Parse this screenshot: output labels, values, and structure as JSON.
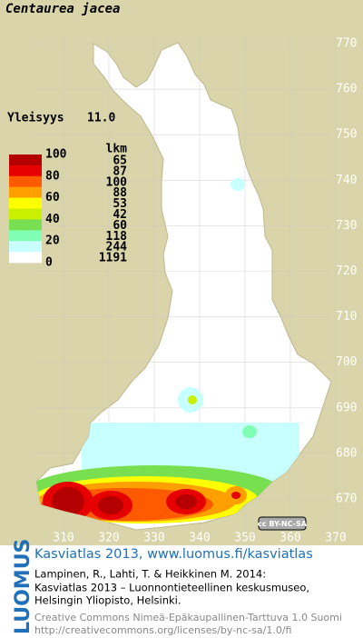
{
  "map": {
    "title": "Centaurea jacea",
    "frequency_label": "Yleisyys",
    "frequency_value": "11.0",
    "xticks": [
      310,
      320,
      330,
      340,
      350,
      360,
      370
    ],
    "yticks": [
      670,
      680,
      690,
      700,
      710,
      720,
      730,
      740,
      750,
      760,
      770
    ],
    "license_badge": "cc BY-NC-SA"
  },
  "legend": {
    "count_header": "lkm",
    "scale_labels": [
      "100",
      "80",
      "60",
      "40",
      "20",
      "0"
    ],
    "classes": [
      {
        "color": "#b40000",
        "count": "65"
      },
      {
        "color": "#e60000",
        "count": "87"
      },
      {
        "color": "#ff5a00",
        "count": "100"
      },
      {
        "color": "#ffa000",
        "count": "88"
      },
      {
        "color": "#ffff00",
        "count": "53"
      },
      {
        "color": "#c8f000",
        "count": "42"
      },
      {
        "color": "#78e050",
        "count": "60"
      },
      {
        "color": "#80ffb4",
        "count": "118"
      },
      {
        "color": "#c8ffff",
        "count": "244"
      },
      {
        "color": "#ffffff",
        "count": "1191"
      }
    ]
  },
  "footer": {
    "brand": "LUOMUS",
    "headline": "Kasviatlas 2013, www.luomus.fi/kasviatlas",
    "citation": [
      "Lampinen, R., Lahti, T. & Heikkinen M. 2014:",
      "Kasviatlas 2013 – Luonnontieteellinen keskusmuseo,",
      "Helsingin Yliopisto, Helsinki."
    ],
    "license": [
      "Creative Commons Nimeä-Epäkaupallinen-Tarttuva 1.0 Suomi",
      "http://creativecommons.org/licenses/by-nc-sa/1.0/fi"
    ]
  }
}
